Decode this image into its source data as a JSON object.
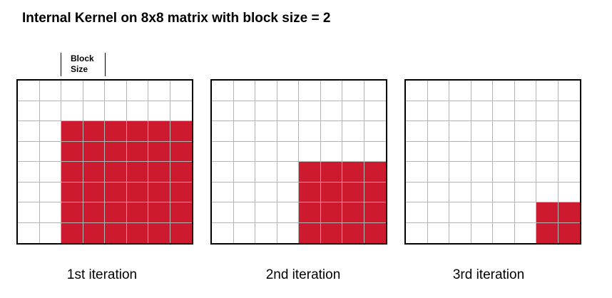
{
  "title": "Internal Kernel on 8x8 matrix with block size = 2",
  "block_label": {
    "line1": "Block",
    "line2": "Size"
  },
  "matrix_size": 8,
  "block_size": 2,
  "colors": {
    "active": "#ce1a2e",
    "grid": "#b3b3b3",
    "border": "#000000"
  },
  "iterations": [
    {
      "caption": "1st iteration",
      "active_from_row": 2,
      "active_from_col": 2
    },
    {
      "caption": "2nd iteration",
      "active_from_row": 4,
      "active_from_col": 4
    },
    {
      "caption": "3rd iteration",
      "active_from_row": 6,
      "active_from_col": 6
    }
  ]
}
